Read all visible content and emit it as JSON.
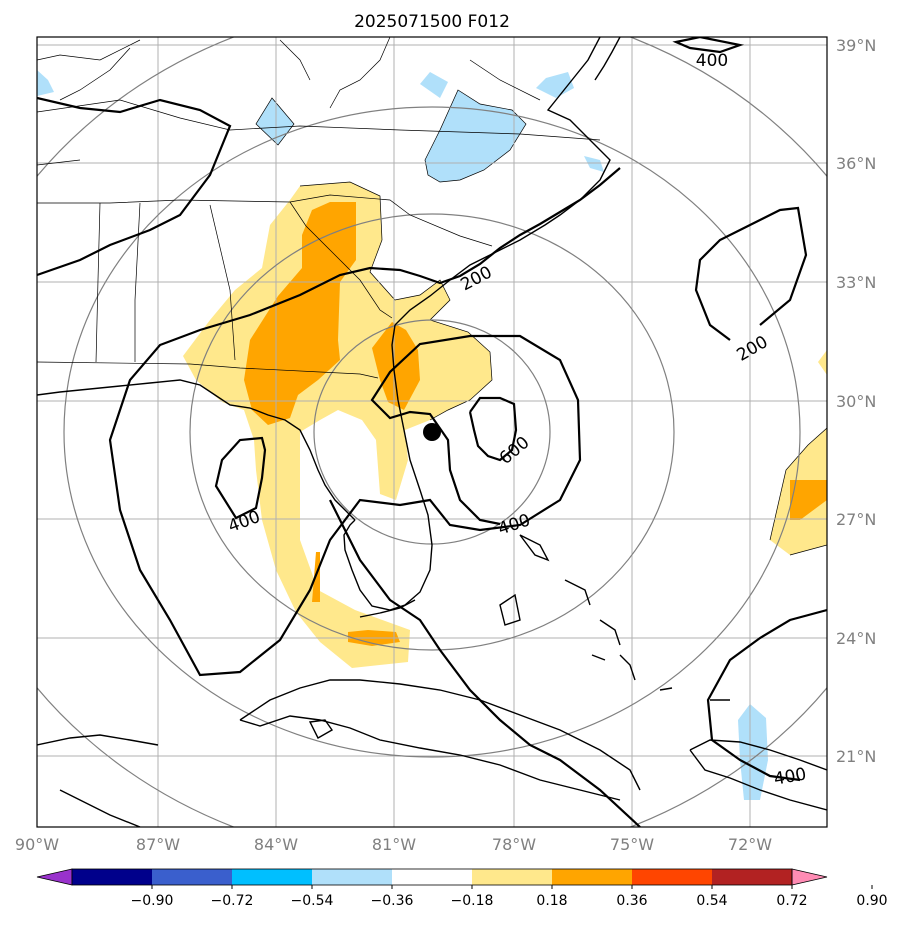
{
  "title": "2025071500 F012",
  "lat_labels": [
    "39°N",
    "36°N",
    "33°N",
    "30°N",
    "27°N",
    "24°N",
    "21°N"
  ],
  "lon_labels": [
    "90°W",
    "87°W",
    "84°W",
    "81°W",
    "78°W",
    "75°W",
    "72°W"
  ],
  "contour_labels": [
    "400",
    "200",
    "200",
    "600",
    "400",
    "400",
    "400"
  ],
  "colorbar": {
    "tick_labels": [
      "−0.90",
      "−0.72",
      "−0.54",
      "−0.36",
      "−0.18",
      "0.18",
      "0.36",
      "0.54",
      "0.72",
      "0.90"
    ],
    "colors": [
      "#9932cc",
      "#00008b",
      "#3a5fcd",
      "#00bfff",
      "#b0e0fa",
      "#ffffff",
      "#ffe88c",
      "#ffa500",
      "#ff4500",
      "#b22222",
      "#ff8cb4"
    ]
  },
  "colors": {
    "light_yellow": "#ffe88c",
    "orange": "#ffa500",
    "light_blue": "#b0e0fa",
    "grid": "#b0b0b0",
    "range_rings": "#808080",
    "contours": "#000000"
  },
  "storm_center": {
    "lat": 29.2,
    "lon": -79.7
  }
}
